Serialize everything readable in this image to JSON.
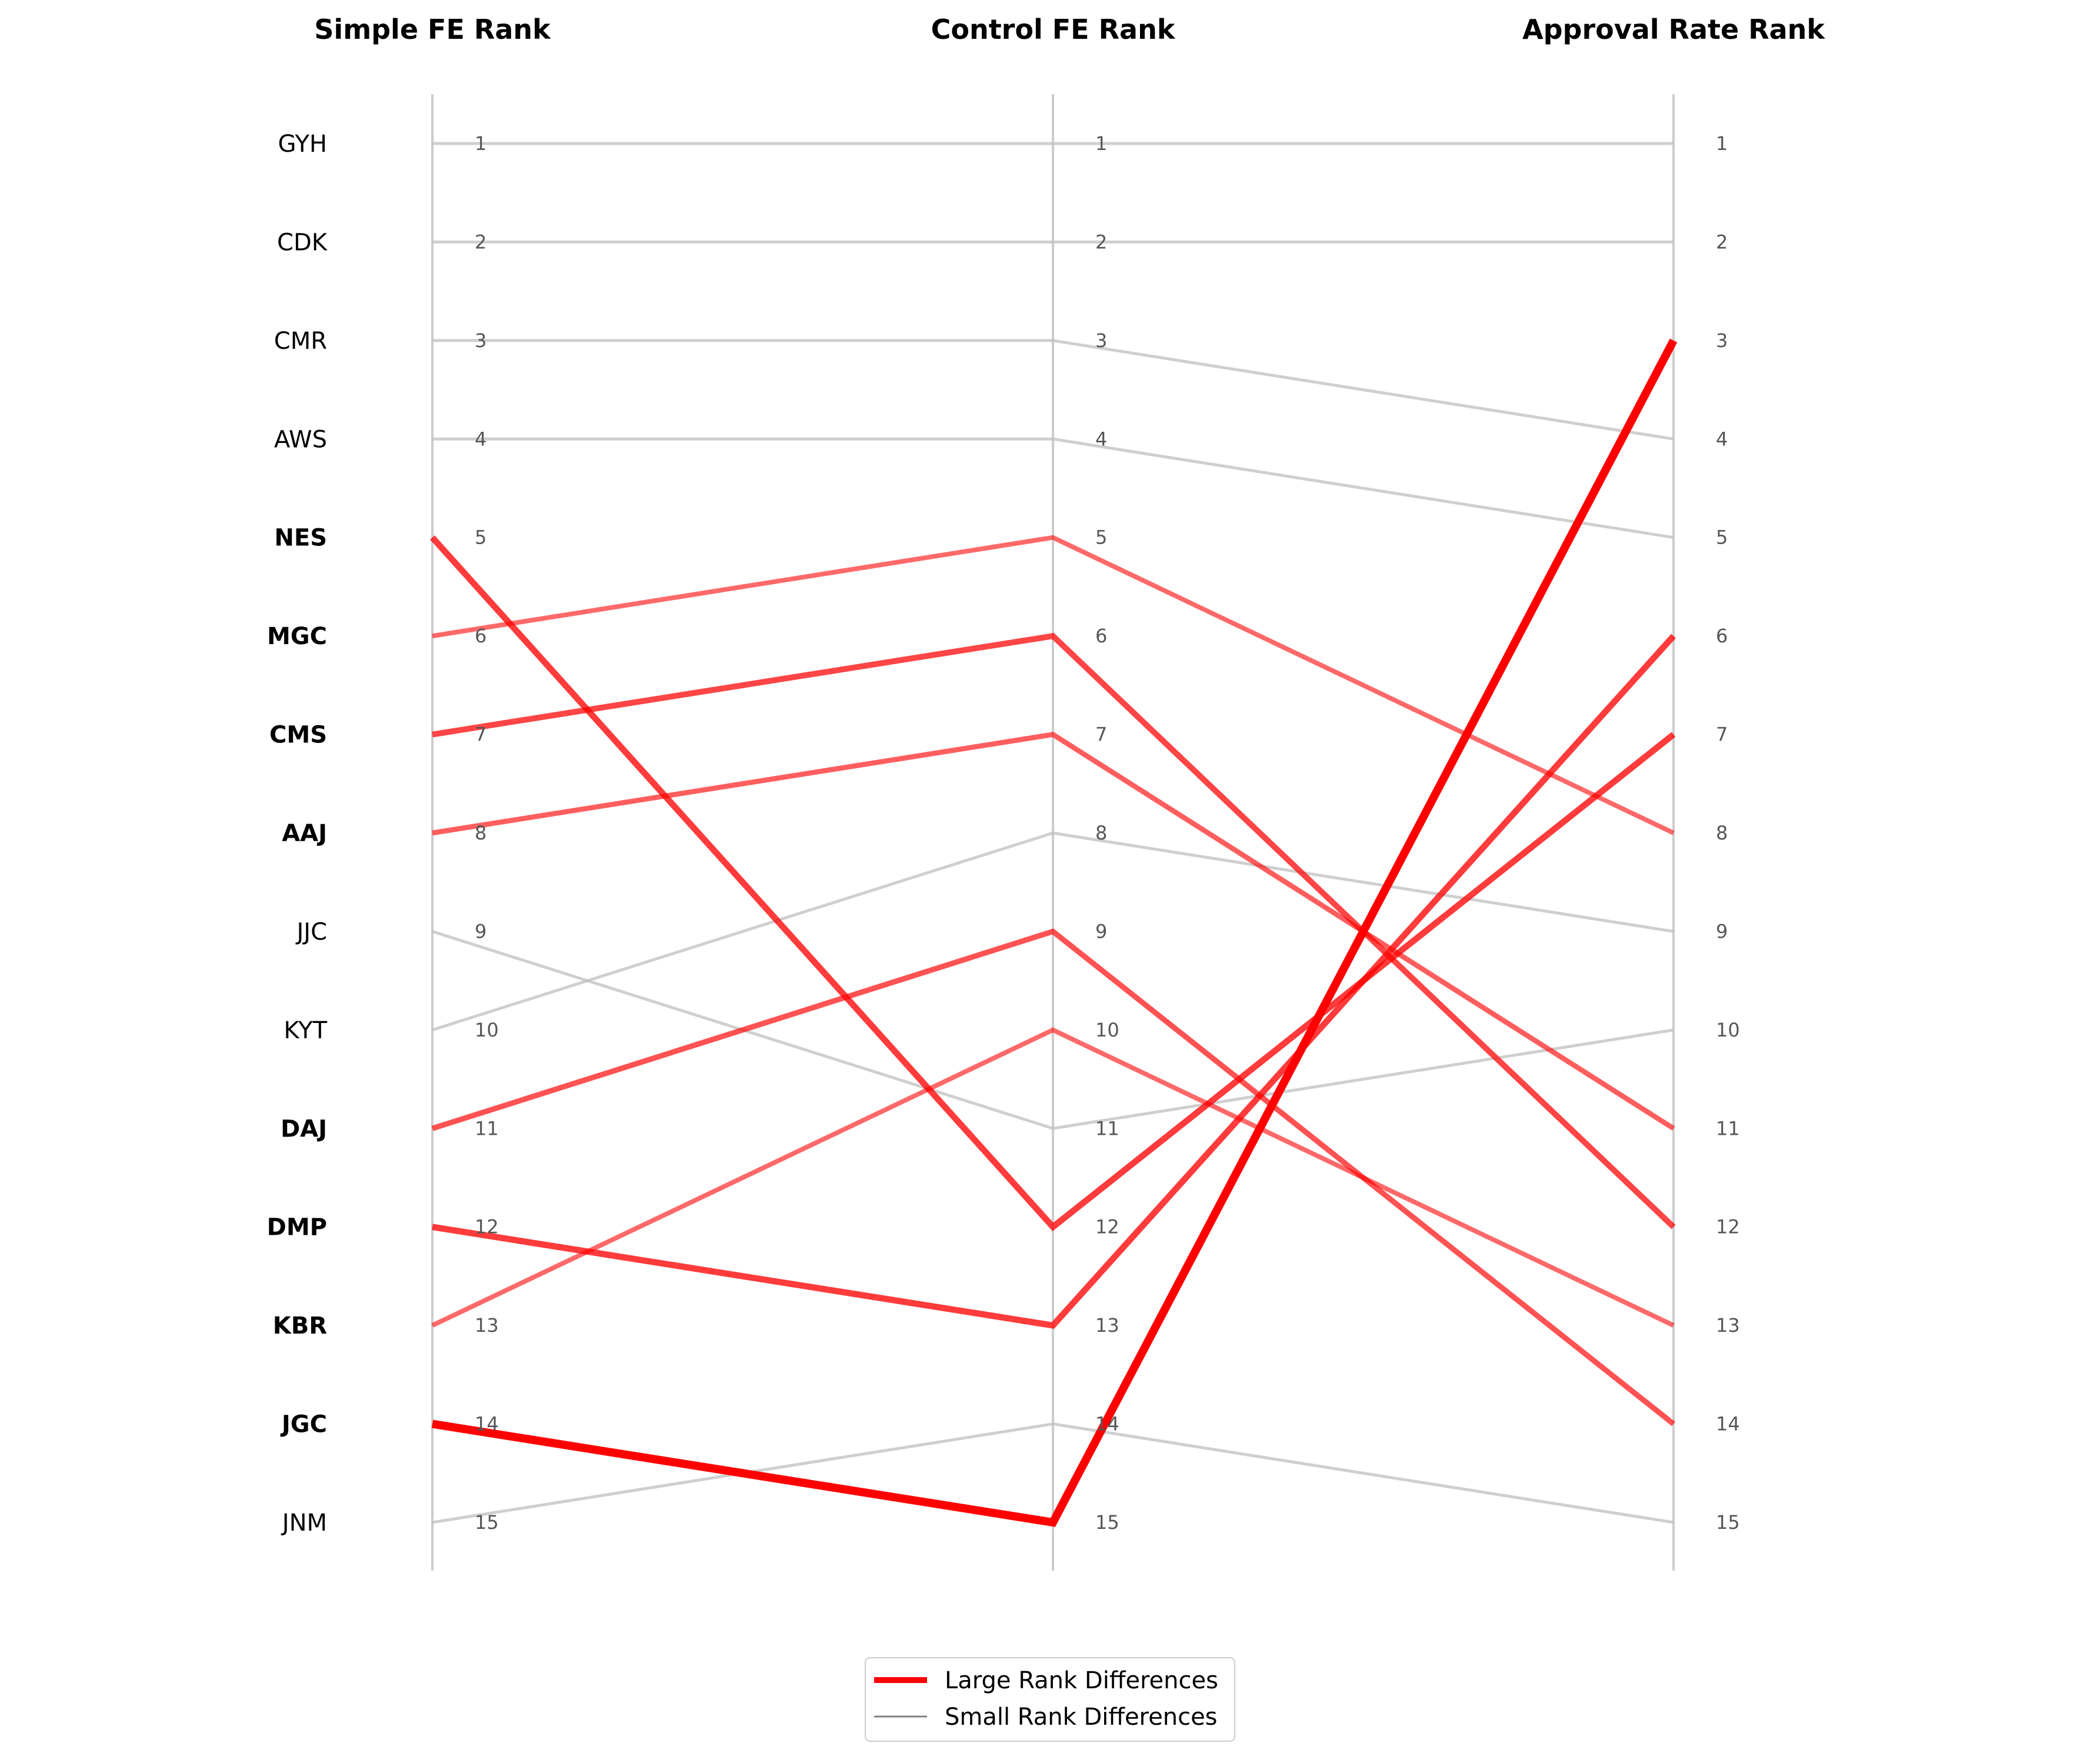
{
  "chart_data": {
    "type": "line",
    "axes": [
      "Simple FE Rank",
      "Control FE Rank",
      "Approval Rate Rank"
    ],
    "rank_ticks": [
      1,
      2,
      3,
      4,
      5,
      6,
      7,
      8,
      9,
      10,
      11,
      12,
      13,
      14,
      15
    ],
    "ylim": [
      1,
      15
    ],
    "series": [
      {
        "name": "GYH",
        "values": [
          1,
          1,
          1
        ],
        "emphasis": "small",
        "bold_label": false
      },
      {
        "name": "CDK",
        "values": [
          2,
          2,
          2
        ],
        "emphasis": "small",
        "bold_label": false
      },
      {
        "name": "CMR",
        "values": [
          3,
          3,
          4
        ],
        "emphasis": "small",
        "bold_label": false
      },
      {
        "name": "AWS",
        "values": [
          4,
          4,
          5
        ],
        "emphasis": "small",
        "bold_label": false
      },
      {
        "name": "NES",
        "values": [
          5,
          12,
          7
        ],
        "emphasis": "large",
        "bold_label": true
      },
      {
        "name": "MGC",
        "values": [
          6,
          5,
          8
        ],
        "emphasis": "large",
        "bold_label": true
      },
      {
        "name": "CMS",
        "values": [
          7,
          6,
          12
        ],
        "emphasis": "large",
        "bold_label": true
      },
      {
        "name": "AAJ",
        "values": [
          8,
          7,
          11
        ],
        "emphasis": "large",
        "bold_label": true
      },
      {
        "name": "JJC",
        "values": [
          9,
          11,
          10
        ],
        "emphasis": "small",
        "bold_label": false
      },
      {
        "name": "KYT",
        "values": [
          10,
          8,
          9
        ],
        "emphasis": "small",
        "bold_label": false
      },
      {
        "name": "DAJ",
        "values": [
          11,
          9,
          14
        ],
        "emphasis": "large",
        "bold_label": true
      },
      {
        "name": "DMP",
        "values": [
          12,
          13,
          6
        ],
        "emphasis": "large",
        "bold_label": true
      },
      {
        "name": "KBR",
        "values": [
          13,
          10,
          13
        ],
        "emphasis": "large",
        "bold_label": true
      },
      {
        "name": "JGC",
        "values": [
          14,
          15,
          3
        ],
        "emphasis": "large",
        "bold_label": true
      },
      {
        "name": "JNM",
        "values": [
          15,
          14,
          15
        ],
        "emphasis": "small",
        "bold_label": false
      }
    ],
    "legend": {
      "placement": "bottom-center",
      "items": [
        {
          "label": "Large Rank Differences",
          "color": "#ff0000"
        },
        {
          "label": "Small Rank Differences",
          "color": "#808080"
        }
      ]
    },
    "colors": {
      "large": "#ff0000",
      "small": "#bfbfbf",
      "axis_line": "#cccccc",
      "tick_text": "#555555"
    },
    "grid": false
  }
}
